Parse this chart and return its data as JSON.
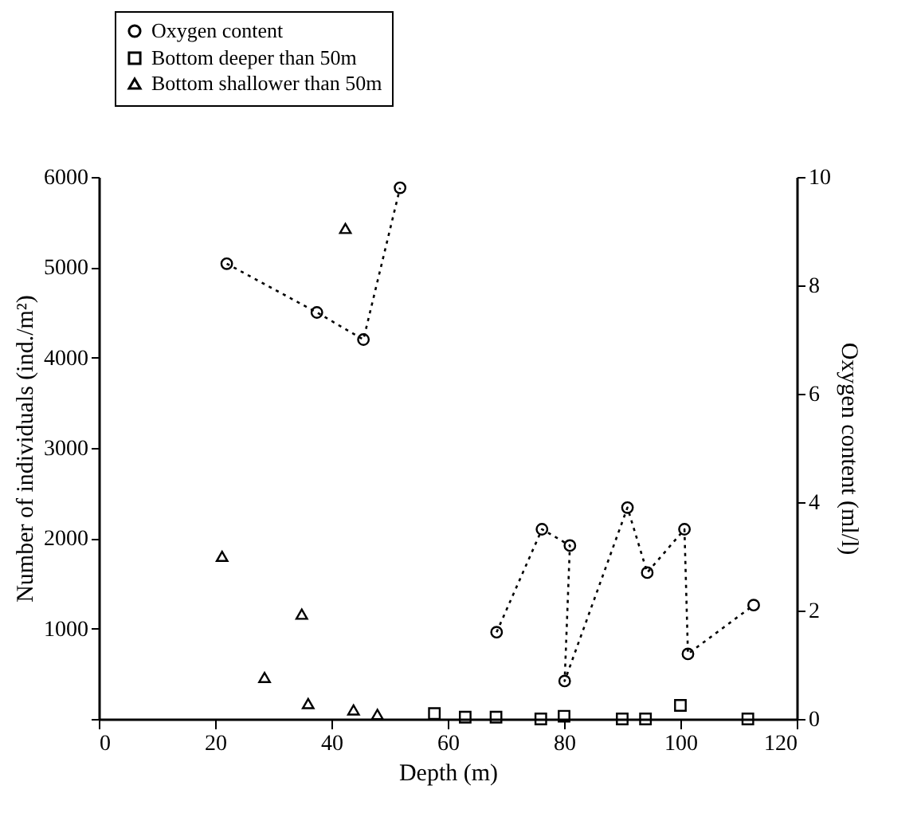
{
  "chart_data": {
    "type": "scatter",
    "xlabel": "Depth (m)",
    "ylabel": "Number of individuals (ind./m²)",
    "y2label": "Oxygen content (ml/l)",
    "xlim": [
      0,
      120
    ],
    "xticks": [
      0,
      20,
      40,
      60,
      80,
      100,
      120
    ],
    "ylim": [
      0,
      6000
    ],
    "yticks": [
      {
        "value": 0,
        "label": null
      },
      1000,
      2000,
      3000,
      4000,
      5000,
      6000
    ],
    "y2lim": [
      0,
      10
    ],
    "y2ticks": [
      0,
      2,
      4,
      6,
      8,
      10
    ],
    "grid": false,
    "legend": "top left",
    "series": [
      {
        "name": "Oxygen content",
        "type": "line",
        "axis": "y2",
        "color": "#000000",
        "marker": "circle",
        "line_style": "dotted",
        "x": [
          22,
          37.5,
          45.5,
          51.8
        ],
        "values": [
          8.4,
          7.5,
          7.0,
          9.8
        ]
      },
      {
        "type": "line",
        "axis": "y2",
        "color": "#000000",
        "marker": "circle",
        "line_style": "dotted",
        "x": [
          68.4,
          76.2,
          81,
          80.1,
          90.9,
          94.3,
          100.7,
          101.3,
          112.6
        ],
        "values": [
          1.6,
          3.5,
          3.2,
          0.7,
          3.9,
          2.7,
          3.5,
          1.2,
          2.1
        ]
      },
      {
        "name": "Bottom deeper than 50m",
        "type": "scatter",
        "color": "#000000",
        "marker": "square",
        "x": [
          57.7,
          63,
          68.3,
          76,
          80,
          90,
          94,
          100,
          111.6
        ],
        "values": [
          60,
          20,
          20,
          0,
          30,
          0,
          0,
          150,
          0
        ]
      },
      {
        "name": "Bottom shallower than 50m",
        "type": "scatter",
        "color": "#000000",
        "marker": "triangle",
        "x": [
          21.2,
          28.5,
          34.9,
          36,
          42.4,
          43.8,
          47.9
        ],
        "values": [
          1800,
          460,
          1160,
          170,
          5430,
          100,
          50
        ]
      }
    ]
  }
}
